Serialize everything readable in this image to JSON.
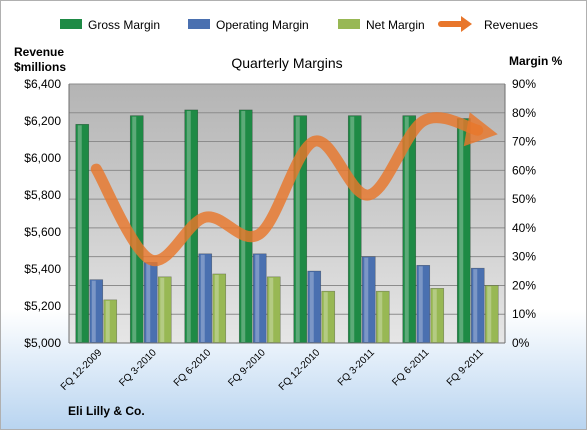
{
  "chart_data": {
    "type": "bar",
    "title": "Quarterly Margins",
    "company": "Eli Lilly & Co.",
    "left_axis_label_line1": "Revenue",
    "left_axis_label_line2": "$millions",
    "right_axis_label": "Margin %",
    "categories": [
      "FQ 12-2009",
      "FQ 3-2010",
      "FQ 6-2010",
      "FQ 9-2010",
      "FQ 12-2010",
      "FQ 3-2011",
      "FQ 6-2011",
      "FQ 9-2011"
    ],
    "left_ylim": [
      5000,
      6400
    ],
    "left_ticks": [
      "$5,000",
      "$5,200",
      "$5,400",
      "$5,600",
      "$5,800",
      "$6,000",
      "$6,200",
      "$6,400"
    ],
    "right_ylim": [
      0,
      90
    ],
    "right_ticks": [
      "0%",
      "10%",
      "20%",
      "30%",
      "40%",
      "50%",
      "60%",
      "70%",
      "80%",
      "90%"
    ],
    "series": [
      {
        "name": "Gross Margin",
        "kind": "bar",
        "axis": "right",
        "color": "#1e8a45",
        "values": [
          76,
          79,
          81,
          81,
          79,
          79,
          79,
          78
        ]
      },
      {
        "name": "Operating Margin",
        "kind": "bar",
        "axis": "right",
        "color": "#4a70b0",
        "values": [
          22,
          28,
          31,
          31,
          25,
          30,
          27,
          26
        ]
      },
      {
        "name": "Net Margin",
        "kind": "bar",
        "axis": "right",
        "color": "#98b854",
        "values": [
          15,
          23,
          24,
          23,
          18,
          18,
          19,
          20
        ]
      },
      {
        "name": "Revenues",
        "kind": "line",
        "axis": "left",
        "color": "#e8762b",
        "values": [
          5940,
          5450,
          5680,
          5590,
          6090,
          5800,
          6200,
          6150
        ]
      }
    ],
    "grid": true,
    "legend_position": "top"
  }
}
